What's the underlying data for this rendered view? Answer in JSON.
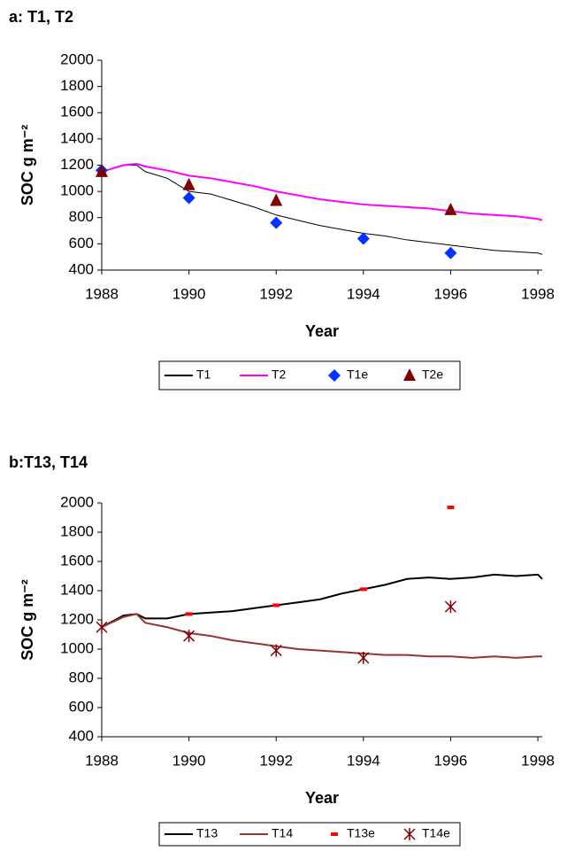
{
  "chart_data": [
    {
      "type": "line",
      "title": "a: T1, T2",
      "x_label": "Year",
      "y_label": "SOC g m⁻²",
      "xlim": [
        1988,
        1998.1
      ],
      "xticks": [
        1988,
        1990,
        1992,
        1994,
        1996,
        1998
      ],
      "ylim": [
        400,
        2000
      ],
      "yticks": [
        400,
        600,
        800,
        1000,
        1200,
        1400,
        1600,
        1800,
        2000
      ],
      "grid": false,
      "series": [
        {
          "name": "T1",
          "color": "#000000",
          "style": "line",
          "x": [
            1988,
            1988.5,
            1988.8,
            1989,
            1989.5,
            1990,
            1990.5,
            1991,
            1991.5,
            1992,
            1992.5,
            1993,
            1993.5,
            1994,
            1994.5,
            1995,
            1995.5,
            1996,
            1996.5,
            1997,
            1997.5,
            1998,
            1998.1
          ],
          "values": [
            1150,
            1200,
            1200,
            1150,
            1100,
            1000,
            980,
            930,
            880,
            820,
            780,
            740,
            710,
            680,
            660,
            630,
            610,
            590,
            570,
            550,
            540,
            530,
            520
          ]
        },
        {
          "name": "T2",
          "color": "#ff00ff",
          "style": "line",
          "x": [
            1988,
            1988.5,
            1988.8,
            1989,
            1989.5,
            1990,
            1990.5,
            1991,
            1991.5,
            1992,
            1992.5,
            1993,
            1993.5,
            1994,
            1994.5,
            1995,
            1995.5,
            1996,
            1996.5,
            1997,
            1997.5,
            1998,
            1998.1
          ],
          "values": [
            1150,
            1200,
            1210,
            1190,
            1160,
            1120,
            1100,
            1070,
            1040,
            1000,
            970,
            940,
            920,
            900,
            890,
            880,
            870,
            850,
            830,
            820,
            810,
            790,
            780
          ]
        },
        {
          "name": "T1e",
          "color": "#0033ff",
          "style": "diamond",
          "x": [
            1988,
            1990,
            1992,
            1994,
            1996
          ],
          "values": [
            1160,
            950,
            760,
            640,
            530
          ]
        },
        {
          "name": "T2e",
          "color": "#800000",
          "style": "triangle",
          "x": [
            1988,
            1990,
            1992,
            1994,
            1996
          ],
          "values": [
            1150,
            1050,
            930,
            null,
            860
          ]
        }
      ]
    },
    {
      "type": "line",
      "title": "b:T13, T14",
      "x_label": "Year",
      "y_label": "SOC g m⁻²",
      "xlim": [
        1988,
        1998.1
      ],
      "xticks": [
        1988,
        1990,
        1992,
        1994,
        1996,
        1998
      ],
      "ylim": [
        400,
        2000
      ],
      "yticks": [
        400,
        600,
        800,
        1000,
        1200,
        1400,
        1600,
        1800,
        2000
      ],
      "grid": false,
      "series": [
        {
          "name": "T13",
          "color": "#000000",
          "style": "line",
          "x": [
            1988,
            1988.5,
            1988.8,
            1989,
            1989.5,
            1990,
            1990.5,
            1991,
            1991.5,
            1992,
            1992.5,
            1993,
            1993.5,
            1994,
            1994.5,
            1995,
            1995.5,
            1996,
            1996.5,
            1997,
            1997.5,
            1998,
            1998.1
          ],
          "values": [
            1150,
            1230,
            1240,
            1210,
            1210,
            1240,
            1250,
            1260,
            1280,
            1300,
            1320,
            1340,
            1380,
            1410,
            1440,
            1480,
            1490,
            1480,
            1490,
            1510,
            1500,
            1510,
            1480
          ]
        },
        {
          "name": "T14",
          "color": "#993333",
          "style": "line",
          "x": [
            1988,
            1988.5,
            1988.8,
            1989,
            1989.5,
            1990,
            1990.5,
            1991,
            1991.5,
            1992,
            1992.5,
            1993,
            1993.5,
            1994,
            1994.5,
            1995,
            1995.5,
            1996,
            1996.5,
            1997,
            1997.5,
            1998,
            1998.1
          ],
          "values": [
            1150,
            1220,
            1240,
            1180,
            1150,
            1110,
            1090,
            1060,
            1040,
            1020,
            1000,
            990,
            980,
            970,
            960,
            960,
            950,
            950,
            940,
            950,
            940,
            950,
            950
          ]
        },
        {
          "name": "T13e",
          "color": "#ff0000",
          "style": "dash",
          "x": [
            1988,
            1990,
            1992,
            1994,
            1996
          ],
          "values": [
            null,
            1240,
            1300,
            1410,
            1970
          ]
        },
        {
          "name": "T14e",
          "color": "#800000",
          "style": "asterisk",
          "x": [
            1988,
            1990,
            1992,
            1994,
            1996
          ],
          "values": [
            1150,
            1090,
            990,
            940,
            1290
          ]
        }
      ]
    }
  ]
}
